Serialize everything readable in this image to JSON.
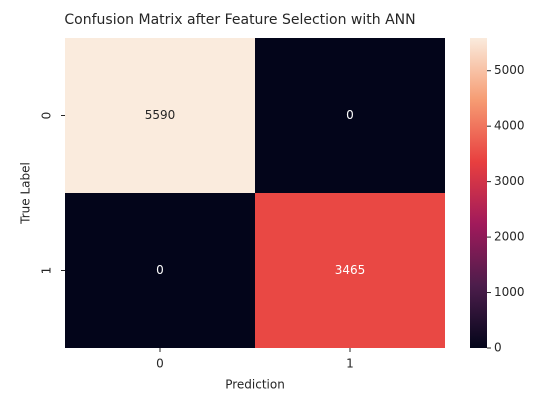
{
  "chart_data": {
    "type": "heatmap",
    "title": "Confusion Matrix after Feature Selection with ANN",
    "xlabel": "Prediction",
    "ylabel": "True Label",
    "x_categories": [
      "0",
      "1"
    ],
    "y_categories": [
      "0",
      "1"
    ],
    "values": [
      [
        5590,
        0
      ],
      [
        0,
        3465
      ]
    ],
    "clim": [
      0,
      5590
    ],
    "cticks": [
      0,
      1000,
      2000,
      3000,
      4000,
      5000
    ],
    "cmap": [
      "#03051a",
      "#4c1d4b",
      "#a11a5b",
      "#e83f3f",
      "#f69c73",
      "#faebdd"
    ]
  }
}
